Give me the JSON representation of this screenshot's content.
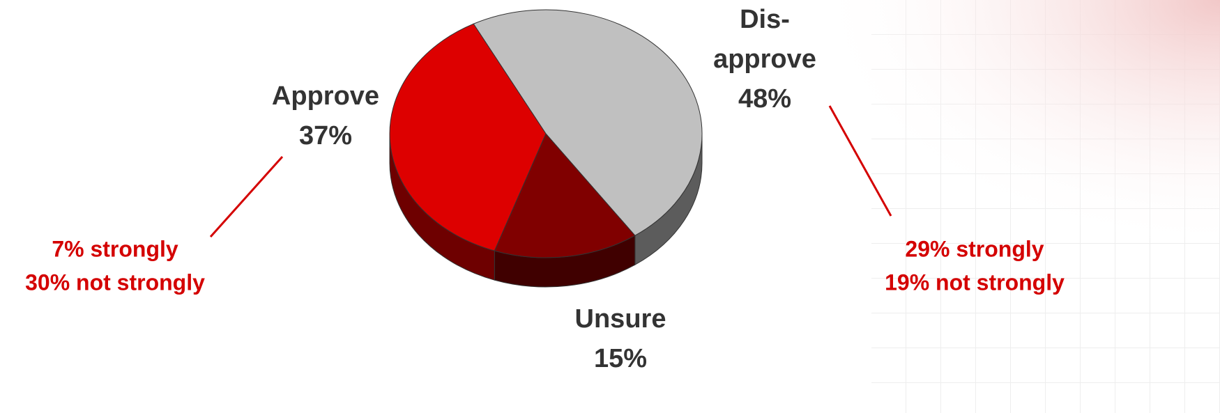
{
  "chart_data": {
    "type": "pie",
    "categories": [
      "Approve",
      "Dis-approve",
      "Unsure"
    ],
    "values": [
      37,
      48,
      15
    ],
    "value_labels": [
      "37%",
      "48%",
      "15%"
    ],
    "colors": [
      "#dd0000",
      "#c0c0c0",
      "#800000"
    ],
    "side_colors": [
      "#6e0000",
      "#5c5c5c",
      "#400000"
    ],
    "annotations": [
      "7% strongly",
      "30% not strongly",
      "29% strongly",
      "19% not strongly"
    ]
  }
}
